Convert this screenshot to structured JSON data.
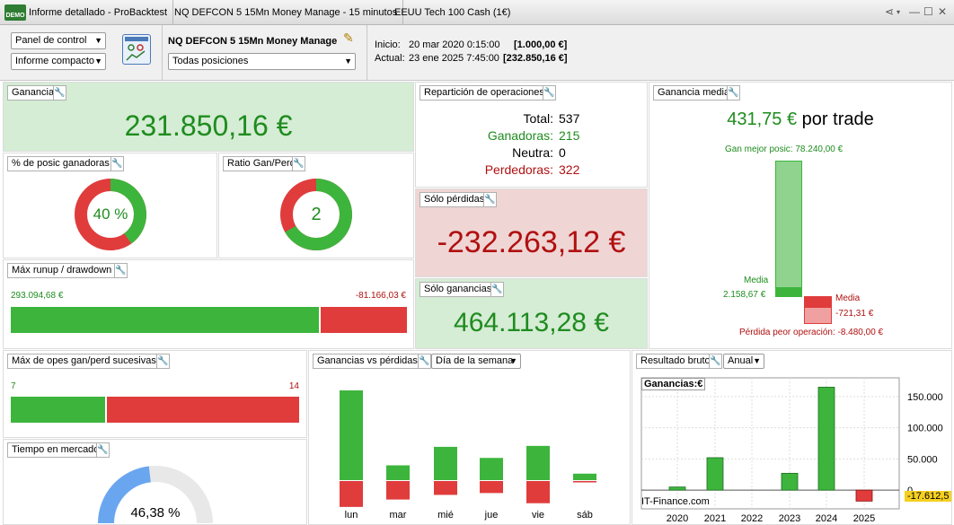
{
  "titlebar": {
    "logo": "DEMO",
    "tab1": "Informe detallado - ProBacktest",
    "tab2": "NQ DEFCON 5 15Mn Money Manage - 15 minutos",
    "tab3": "EEUU Tech 100 Cash (1€)"
  },
  "header": {
    "panel_select": "Panel de control",
    "report_select": "Informe compacto",
    "strategy_name": "NQ DEFCON 5 15Mn Money Manage",
    "positions_select": "Todas posiciones",
    "start_label": "Inicio:",
    "start_date": "20 mar 2020 0:15:00",
    "start_value": "[1.000,00 €]",
    "current_label": "Actual:",
    "current_date": "23 ene 2025 7:45:00",
    "current_value": "[232.850,16 €]"
  },
  "ganancia": {
    "title": "Ganancia",
    "value": "231.850,16 €"
  },
  "reparticion": {
    "title": "Repartición de operaciones",
    "total_label": "Total:",
    "total": "537",
    "win_label": "Ganadoras:",
    "win": "215",
    "neutral_label": "Neutra:",
    "neutral": "0",
    "loss_label": "Perdedoras:",
    "loss": "322"
  },
  "ganancia_media": {
    "title": "Ganancia media",
    "value": "431,75 €",
    "suffix": "por trade",
    "best_label": "Gan mejor posic: 78.240,00 €",
    "media_label": "Media",
    "media_win": "2.158,67 €",
    "media_loss_label": "Media",
    "media_loss": "-721,31 €",
    "worst_label": "Pérdida peor operación: -8.480,00 €"
  },
  "pct_ganadoras": {
    "title": "% de posic ganadoras",
    "value": "40 %",
    "fraction": 0.4
  },
  "ratio": {
    "title": "Ratio Gan/Perd",
    "value": "2",
    "fraction": 0.667
  },
  "solo_perdidas": {
    "title": "Sólo pérdidas",
    "value": "-232.263,12 €"
  },
  "solo_ganancias": {
    "title": "Sólo ganancias",
    "value": "464.113,28 €"
  },
  "runup": {
    "title": "Máx runup / drawdown",
    "runup": "293.094,68 €",
    "drawdown": "-81.166,03 €",
    "runup_fraction": 0.783
  },
  "sucesivas": {
    "title": "Máx de opes gan/perd sucesivas",
    "wins": "7",
    "losses": "14",
    "win_fraction": 0.333
  },
  "tiempo": {
    "title": "Tiempo en mercado",
    "value": "46,38 %",
    "fraction": 0.4638
  },
  "gvp": {
    "title": "Ganancias vs pérdidas",
    "period_select": "Día de la semana",
    "days": [
      "lun",
      "mar",
      "mié",
      "jue",
      "vie",
      "sáb"
    ]
  },
  "resultado": {
    "title": "Resultado bruto",
    "period_select": "Anual",
    "legend": "Ganancias:€",
    "watermark": "IT-Finance.com",
    "current_value": "-17.612,5"
  },
  "chart_data": [
    {
      "type": "bar",
      "title": "Ganancias vs pérdidas",
      "categories": [
        "lun",
        "mar",
        "mié",
        "jue",
        "vie",
        "sáb"
      ],
      "series": [
        {
          "values": [
            97000,
            16000,
            36000,
            24000,
            37000,
            7000
          ],
          "color": "#3db53d"
        },
        {
          "values": [
            -28000,
            -20000,
            -15000,
            -13000,
            -24000,
            -1500
          ],
          "color": "#e03c3c"
        }
      ]
    },
    {
      "type": "bar",
      "title": "Resultado bruto",
      "categories": [
        "2020",
        "2021",
        "2022",
        "2023",
        "2024",
        "2025"
      ],
      "values": [
        5000,
        52000,
        0,
        27000,
        165000,
        -17612.5
      ],
      "yticks": [
        "150.000",
        "100.000",
        "50.000",
        "0"
      ],
      "ylim": [
        -30000,
        180000
      ]
    }
  ],
  "colors": {
    "green": "#3db53d",
    "red": "#e03c3c",
    "text_green": "#1e8c1e",
    "text_red": "#b01010",
    "bg_green": "#d5ecd5",
    "bg_red": "#f0d5d5"
  }
}
